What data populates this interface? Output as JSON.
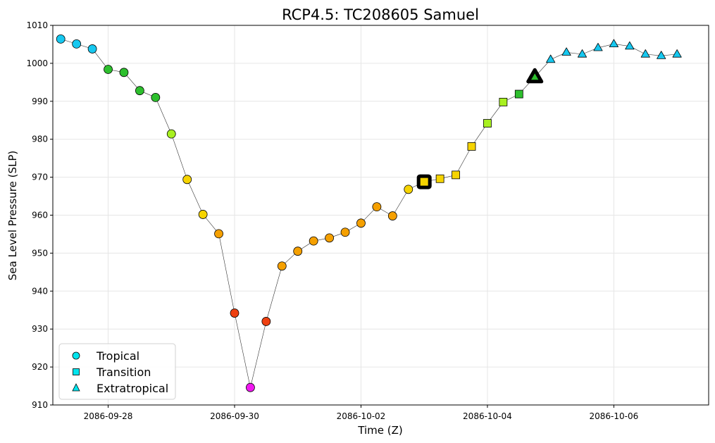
{
  "chart_data": {
    "type": "scatter",
    "title": "RCP4.5: TC208605 Samuel",
    "xlabel": "Time (Z)",
    "ylabel": "Sea Level Pressure (SLP)",
    "ylim": [
      910,
      1010
    ],
    "yticks": [
      910,
      920,
      930,
      940,
      950,
      960,
      970,
      980,
      990,
      1000,
      1010
    ],
    "xlim": [
      "2086-09-27T03:00",
      "2086-10-07T12:00"
    ],
    "xticks": [
      "2086-09-28",
      "2086-09-30",
      "2086-10-02",
      "2086-10-04",
      "2086-10-06"
    ],
    "grid": true,
    "legend_position": "lower-left",
    "legend": [
      {
        "label": "Tropical",
        "marker": "circle"
      },
      {
        "label": "Transition",
        "marker": "square"
      },
      {
        "label": "Extratropical",
        "marker": "triangle"
      }
    ],
    "line_color": "#333333",
    "colors": {
      "cyan": "#16c8f0",
      "green": "#2dbf2d",
      "lime": "#a8f020",
      "yellow": "#f6d400",
      "orange": "#f5a000",
      "red": "#ee4010",
      "magenta": "#f018f0",
      "legend_cyan": "#00e5ee"
    },
    "points": [
      {
        "x": "2086-09-27T06:00",
        "y": 1006.4,
        "phase": "tropical",
        "color": "cyan"
      },
      {
        "x": "2086-09-27T12:00",
        "y": 1005.1,
        "phase": "tropical",
        "color": "cyan"
      },
      {
        "x": "2086-09-27T18:00",
        "y": 1003.8,
        "phase": "tropical",
        "color": "cyan"
      },
      {
        "x": "2086-09-28T00:00",
        "y": 998.4,
        "phase": "tropical",
        "color": "green"
      },
      {
        "x": "2086-09-28T06:00",
        "y": 997.6,
        "phase": "tropical",
        "color": "green"
      },
      {
        "x": "2086-09-28T12:00",
        "y": 992.8,
        "phase": "tropical",
        "color": "green"
      },
      {
        "x": "2086-09-28T18:00",
        "y": 991.0,
        "phase": "tropical",
        "color": "green"
      },
      {
        "x": "2086-09-29T00:00",
        "y": 981.4,
        "phase": "tropical",
        "color": "lime"
      },
      {
        "x": "2086-09-29T06:00",
        "y": 969.4,
        "phase": "tropical",
        "color": "yellow"
      },
      {
        "x": "2086-09-29T12:00",
        "y": 960.2,
        "phase": "tropical",
        "color": "yellow"
      },
      {
        "x": "2086-09-29T18:00",
        "y": 955.1,
        "phase": "tropical",
        "color": "orange"
      },
      {
        "x": "2086-09-30T00:00",
        "y": 934.2,
        "phase": "tropical",
        "color": "red"
      },
      {
        "x": "2086-09-30T06:00",
        "y": 914.6,
        "phase": "tropical",
        "color": "magenta"
      },
      {
        "x": "2086-09-30T12:00",
        "y": 932.0,
        "phase": "tropical",
        "color": "red"
      },
      {
        "x": "2086-09-30T18:00",
        "y": 946.6,
        "phase": "tropical",
        "color": "orange"
      },
      {
        "x": "2086-10-01T00:00",
        "y": 950.5,
        "phase": "tropical",
        "color": "orange"
      },
      {
        "x": "2086-10-01T06:00",
        "y": 953.2,
        "phase": "tropical",
        "color": "orange"
      },
      {
        "x": "2086-10-01T12:00",
        "y": 954.0,
        "phase": "tropical",
        "color": "orange"
      },
      {
        "x": "2086-10-01T18:00",
        "y": 955.5,
        "phase": "tropical",
        "color": "orange"
      },
      {
        "x": "2086-10-02T00:00",
        "y": 957.9,
        "phase": "tropical",
        "color": "orange"
      },
      {
        "x": "2086-10-02T06:00",
        "y": 962.2,
        "phase": "tropical",
        "color": "orange"
      },
      {
        "x": "2086-10-02T12:00",
        "y": 959.8,
        "phase": "tropical",
        "color": "orange"
      },
      {
        "x": "2086-10-02T18:00",
        "y": 966.8,
        "phase": "tropical",
        "color": "yellow"
      },
      {
        "x": "2086-10-03T00:00",
        "y": 968.8,
        "phase": "transition",
        "color": "yellow",
        "emphasis": true
      },
      {
        "x": "2086-10-03T06:00",
        "y": 969.6,
        "phase": "transition",
        "color": "yellow"
      },
      {
        "x": "2086-10-03T12:00",
        "y": 970.6,
        "phase": "transition",
        "color": "yellow"
      },
      {
        "x": "2086-10-03T18:00",
        "y": 978.1,
        "phase": "transition",
        "color": "yellow"
      },
      {
        "x": "2086-10-04T00:00",
        "y": 984.2,
        "phase": "transition",
        "color": "lime"
      },
      {
        "x": "2086-10-04T06:00",
        "y": 989.8,
        "phase": "transition",
        "color": "lime"
      },
      {
        "x": "2086-10-04T12:00",
        "y": 991.9,
        "phase": "transition",
        "color": "green"
      },
      {
        "x": "2086-10-04T18:00",
        "y": 996.4,
        "phase": "extratropical",
        "color": "green",
        "emphasis": true
      },
      {
        "x": "2086-10-05T00:00",
        "y": 1001.0,
        "phase": "extratropical",
        "color": "cyan"
      },
      {
        "x": "2086-10-05T06:00",
        "y": 1002.9,
        "phase": "extratropical",
        "color": "cyan"
      },
      {
        "x": "2086-10-05T12:00",
        "y": 1002.4,
        "phase": "extratropical",
        "color": "cyan"
      },
      {
        "x": "2086-10-05T18:00",
        "y": 1004.1,
        "phase": "extratropical",
        "color": "cyan"
      },
      {
        "x": "2086-10-06T00:00",
        "y": 1005.1,
        "phase": "extratropical",
        "color": "cyan"
      },
      {
        "x": "2086-10-06T06:00",
        "y": 1004.5,
        "phase": "extratropical",
        "color": "cyan"
      },
      {
        "x": "2086-10-06T12:00",
        "y": 1002.4,
        "phase": "extratropical",
        "color": "cyan"
      },
      {
        "x": "2086-10-06T18:00",
        "y": 1002.0,
        "phase": "extratropical",
        "color": "cyan"
      },
      {
        "x": "2086-10-07T00:00",
        "y": 1002.4,
        "phase": "extratropical",
        "color": "cyan"
      }
    ]
  }
}
